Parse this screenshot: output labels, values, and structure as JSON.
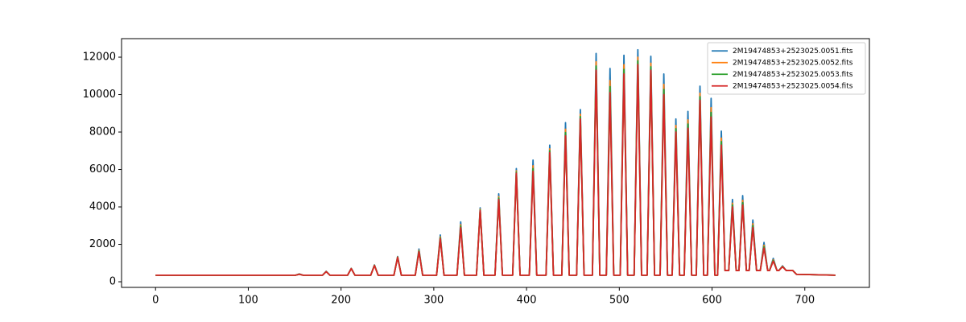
{
  "chart_data": {
    "type": "line",
    "x": [
      0,
      151,
      155,
      159,
      180,
      184,
      188,
      207,
      211,
      215,
      232,
      236,
      240,
      257,
      261,
      265,
      280,
      284,
      288,
      303,
      307,
      311,
      325,
      329,
      333,
      346,
      350,
      354,
      366,
      370,
      374,
      385,
      389,
      393,
      403,
      407,
      411,
      421,
      425,
      429,
      438,
      442,
      446,
      454,
      458,
      462,
      471,
      475,
      479,
      486,
      490,
      494,
      501,
      505,
      509,
      516,
      520,
      524,
      530,
      534,
      538,
      544,
      548,
      552,
      557,
      561,
      565,
      570,
      574,
      578,
      583,
      587,
      591,
      595,
      599,
      603,
      606,
      610,
      614,
      618,
      622,
      626,
      629,
      633,
      637,
      640,
      644,
      648,
      652,
      656,
      660,
      662,
      666,
      670,
      672,
      676,
      680,
      683,
      687,
      691,
      733
    ],
    "series": [
      {
        "name": "2M19474853+2523025.0051.fits",
        "color": "#1f77b4",
        "values": [
          350,
          350,
          420,
          350,
          350,
          560,
          350,
          350,
          720,
          350,
          350,
          900,
          350,
          350,
          1350,
          350,
          350,
          1750,
          350,
          350,
          2500,
          350,
          350,
          3200,
          350,
          350,
          3950,
          350,
          350,
          4700,
          350,
          350,
          6050,
          350,
          350,
          6500,
          350,
          350,
          7300,
          350,
          350,
          8500,
          350,
          350,
          9200,
          350,
          350,
          12200,
          350,
          350,
          11400,
          350,
          350,
          12100,
          350,
          350,
          12400,
          350,
          350,
          12050,
          350,
          350,
          11100,
          350,
          350,
          8700,
          350,
          350,
          9100,
          350,
          350,
          10450,
          350,
          350,
          9800,
          350,
          350,
          8050,
          600,
          600,
          4400,
          600,
          600,
          4600,
          600,
          600,
          3300,
          600,
          600,
          2100,
          600,
          600,
          1250,
          600,
          600,
          850,
          600,
          600,
          600,
          400,
          350
        ]
      },
      {
        "name": "2M19474853+2523025.0052.fits",
        "color": "#ff7f0e",
        "values": [
          350,
          350,
          410,
          350,
          350,
          550,
          350,
          350,
          710,
          350,
          350,
          885,
          350,
          350,
          1325,
          350,
          350,
          1675,
          350,
          350,
          2400,
          350,
          350,
          3050,
          350,
          350,
          3875,
          350,
          350,
          4550,
          350,
          350,
          5925,
          350,
          350,
          6200,
          350,
          350,
          7100,
          350,
          350,
          8150,
          350,
          350,
          8950,
          350,
          350,
          11750,
          350,
          350,
          10750,
          350,
          350,
          11600,
          350,
          350,
          12000,
          350,
          350,
          11675,
          350,
          350,
          10550,
          350,
          350,
          8350,
          350,
          350,
          8650,
          350,
          350,
          10075,
          350,
          350,
          9300,
          350,
          350,
          7675,
          600,
          600,
          4200,
          600,
          600,
          4350,
          600,
          600,
          3100,
          600,
          600,
          1950,
          600,
          600,
          1175,
          600,
          600,
          825,
          600,
          600,
          600,
          400,
          350
        ]
      },
      {
        "name": "2M19474853+2523025.0053.fits",
        "color": "#2ca02c",
        "values": [
          350,
          350,
          405,
          350,
          350,
          545,
          350,
          350,
          705,
          350,
          350,
          878,
          350,
          350,
          1313,
          350,
          350,
          1638,
          350,
          350,
          2350,
          350,
          350,
          2975,
          350,
          350,
          3838,
          350,
          350,
          4475,
          350,
          350,
          5863,
          350,
          350,
          6050,
          350,
          350,
          7000,
          350,
          350,
          7975,
          350,
          350,
          8825,
          350,
          350,
          11525,
          350,
          350,
          10425,
          350,
          350,
          11350,
          350,
          350,
          11800,
          350,
          350,
          11488,
          350,
          350,
          10275,
          350,
          350,
          8175,
          350,
          350,
          8425,
          350,
          350,
          9888,
          350,
          350,
          9050,
          350,
          350,
          7488,
          600,
          600,
          4100,
          600,
          600,
          4225,
          600,
          600,
          3000,
          600,
          600,
          1875,
          600,
          600,
          1138,
          600,
          600,
          813,
          600,
          600,
          600,
          400,
          350
        ]
      },
      {
        "name": "2M19474853+2523025.0054.fits",
        "color": "#d62728",
        "values": [
          350,
          350,
          400,
          350,
          350,
          540,
          350,
          350,
          700,
          350,
          350,
          870,
          350,
          350,
          1300,
          350,
          350,
          1600,
          350,
          350,
          2300,
          350,
          350,
          2900,
          350,
          350,
          3800,
          350,
          350,
          4400,
          350,
          350,
          5800,
          350,
          350,
          5900,
          350,
          350,
          6900,
          350,
          350,
          7800,
          350,
          350,
          8700,
          350,
          350,
          11300,
          350,
          350,
          10100,
          350,
          350,
          11100,
          350,
          350,
          11600,
          350,
          350,
          11300,
          350,
          350,
          10000,
          350,
          350,
          8000,
          350,
          350,
          8200,
          350,
          350,
          9700,
          350,
          350,
          8800,
          350,
          350,
          7300,
          600,
          600,
          4000,
          600,
          600,
          4100,
          600,
          600,
          2900,
          600,
          600,
          1800,
          600,
          600,
          1100,
          600,
          600,
          800,
          600,
          600,
          600,
          400,
          350
        ]
      }
    ],
    "xlim": [
      -36.65,
      769.65
    ],
    "xticks": [
      0,
      100,
      200,
      300,
      400,
      500,
      600,
      700
    ],
    "ylim": [
      -300,
      12990
    ],
    "yticks": [
      0,
      2000,
      4000,
      6000,
      8000,
      10000,
      12000
    ],
    "grid": false,
    "legend": "upper right"
  }
}
